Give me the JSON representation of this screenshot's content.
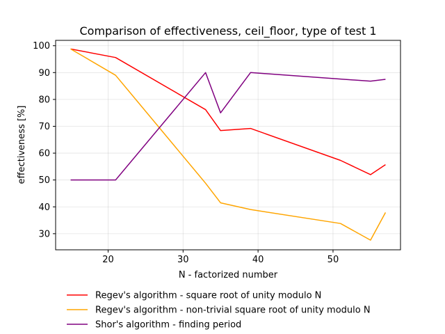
{
  "chart_data": {
    "type": "line",
    "title": "Comparison of effectiveness, ceil_floor, type of test 1",
    "xlabel": "N - factorized number",
    "ylabel": "effectiveness [%]",
    "xlim": [
      13.0,
      59.0
    ],
    "ylim": [
      24.0,
      102.0
    ],
    "xticks": [
      20,
      30,
      40,
      50
    ],
    "yticks": [
      30,
      40,
      50,
      60,
      70,
      80,
      90,
      100
    ],
    "grid": true,
    "legend_position": "below",
    "series": [
      {
        "name": "Regev's algorithm - square root of unity modulo N",
        "color": "#ff0000",
        "x": [
          15,
          21,
          33,
          35,
          39,
          51,
          55,
          57
        ],
        "y": [
          98.8,
          95.6,
          76.2,
          68.4,
          69.2,
          57.3,
          52.0,
          55.7
        ]
      },
      {
        "name": "Regev's algorithm - non-trivial square root of unity modulo N",
        "color": "#ffa500",
        "x": [
          15,
          21,
          33,
          35,
          39,
          51,
          55,
          57
        ],
        "y": [
          98.8,
          89.0,
          48.8,
          41.5,
          39.0,
          33.8,
          27.6,
          37.9
        ]
      },
      {
        "name": "Shor's algorithm - finding period",
        "color": "#800080",
        "x": [
          15,
          21,
          33,
          35,
          39,
          51,
          55,
          57
        ],
        "y": [
          50.0,
          50.0,
          90.0,
          75.0,
          90.0,
          87.6,
          86.8,
          87.5
        ]
      }
    ]
  }
}
